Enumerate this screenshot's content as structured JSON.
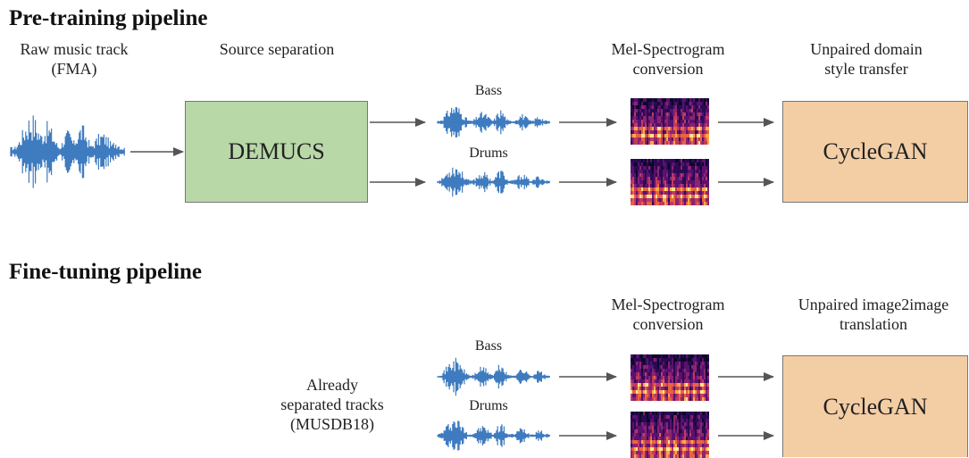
{
  "pretrain": {
    "title": "Pre-training pipeline",
    "raw_label": "Raw music track\n(FMA)",
    "sep_label": "Source separation",
    "demucs": "DEMUCS",
    "mel_label": "Mel-Spectrogram\nconversion",
    "style_label": "Unpaired domain\nstyle transfer",
    "bass": "Bass",
    "drums": "Drums",
    "cyclegan": "CycleGAN"
  },
  "finetune": {
    "title": "Fine-tuning pipeline",
    "tracks_label": "Already\nseparated tracks\n(MUSDB18)",
    "mel_label": "Mel-Spectrogram\nconversion",
    "translation_label": "Unpaired image2image\ntranslation",
    "bass": "Bass",
    "drums": "Drums",
    "cyclegan": "CycleGAN"
  },
  "colors": {
    "waveform": "#3f7bbf",
    "demucs_fill": "#b8d8a8",
    "cyclegan_fill": "#f3cda4",
    "arrow": "#555555"
  }
}
